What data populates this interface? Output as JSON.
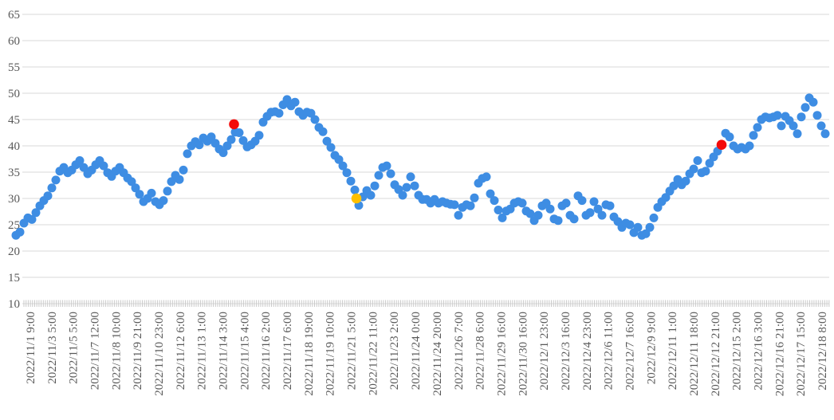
{
  "chart_data": {
    "type": "scatter",
    "title": "",
    "xlabel": "",
    "ylabel": "",
    "legend": "none",
    "grid": "horizontal",
    "y_axis": {
      "min": 10,
      "max": 65,
      "tick_step": 5,
      "ticks": [
        65,
        60,
        55,
        50,
        45,
        40,
        35,
        30,
        25,
        20,
        15,
        10
      ]
    },
    "x_axis": {
      "tick_labels": [
        "2022/11/1 9:00",
        "2022/11/3 5:00",
        "2022/11/5 5:00",
        "2022/11/7 12:00",
        "2022/11/8 10:00",
        "2022/11/9 21:00",
        "2022/11/10 23:00",
        "2022/11/12 6:00",
        "2022/11/13 1:00",
        "2022/11/14 3:00",
        "2022/11/15 4:00",
        "2022/11/16 2:00",
        "2022/11/17 6:00",
        "2022/11/18 19:00",
        "2022/11/19 10:00",
        "2022/11/21 5:00",
        "2022/11/22 11:00",
        "2022/11/23 2:00",
        "2022/11/24 0:00",
        "2022/11/24 20:00",
        "2022/11/26 7:00",
        "2022/11/28 6:00",
        "2022/11/29 16:00",
        "2022/11/30 16:00",
        "2022/12/1 23:00",
        "2022/12/3 16:00",
        "2022/12/4 23:00",
        "2022/12/6 11:00",
        "2022/12/7 16:00",
        "2022/12/9 9:00",
        "2022/12/11 1:00",
        "2022/12/11 18:00",
        "2022/12/12 21:00",
        "2022/12/15 2:00",
        "2022/12/16 3:00",
        "2022/12/16 21:00",
        "2022/12/17 15:00",
        "2022/12/18 8:00"
      ]
    },
    "series": [
      {
        "name": "values",
        "marker": "circle",
        "color": "#3E8DE3",
        "values": [
          23.0,
          23.6,
          25.3,
          26.3,
          26.0,
          27.3,
          28.6,
          29.6,
          30.5,
          32.0,
          33.5,
          35.2,
          35.9,
          34.9,
          35.4,
          36.4,
          37.2,
          35.9,
          34.7,
          35.4,
          36.4,
          37.2,
          36.2,
          34.9,
          34.2,
          35.2,
          35.9,
          34.9,
          33.9,
          33.2,
          32.0,
          30.8,
          29.4,
          30.0,
          31.0,
          29.4,
          28.8,
          29.6,
          31.4,
          33.2,
          34.4,
          33.6,
          35.4,
          38.5,
          40.0,
          40.8,
          40.2,
          41.5,
          40.9,
          41.7,
          40.5,
          39.4,
          38.7,
          40.0,
          41.2,
          42.6,
          42.5,
          41.0,
          39.8,
          40.2,
          40.9,
          42.0,
          44.5,
          45.6,
          46.4,
          46.5,
          46.2,
          47.8,
          48.8,
          47.6,
          48.3,
          46.5,
          45.8,
          46.4,
          46.2,
          45.0,
          43.5,
          42.7,
          40.9,
          39.7,
          38.2,
          37.4,
          36.2,
          34.9,
          33.3,
          31.6,
          28.7,
          30.3,
          31.5,
          30.6,
          32.4,
          34.4,
          35.9,
          36.2,
          34.7,
          32.6,
          31.7,
          30.6,
          32.1,
          34.1,
          32.4,
          30.6,
          29.8,
          29.8,
          29.1,
          29.8,
          29.1,
          29.4,
          29.1,
          28.9,
          28.8,
          26.8,
          28.3,
          28.8,
          28.6,
          30.1,
          32.9,
          33.8,
          34.1,
          30.9,
          29.6,
          27.8,
          26.3,
          27.6,
          28.0,
          29.1,
          29.4,
          29.1,
          27.6,
          27.1,
          25.8,
          26.8,
          28.6,
          29.1,
          28.0,
          26.1,
          25.8,
          28.6,
          29.1,
          26.8,
          26.1,
          30.5,
          29.6,
          26.8,
          27.3,
          29.4,
          28.0,
          26.8,
          28.8,
          28.6,
          26.5,
          25.6,
          24.5,
          25.3,
          25.0,
          23.5,
          24.5,
          23.0,
          23.3,
          24.5,
          26.3,
          28.3,
          29.4,
          30.2,
          31.4,
          32.4,
          33.6,
          32.6,
          33.3,
          34.7,
          35.6,
          37.2,
          34.9,
          35.2,
          36.7,
          37.9,
          39.0,
          40.2,
          42.4,
          41.7,
          40.0,
          39.4,
          39.7,
          39.4,
          40.0,
          42.0,
          43.5,
          45.0,
          45.5,
          45.3,
          45.5,
          45.8,
          43.8,
          45.6,
          44.8,
          43.8,
          42.3,
          45.5,
          47.3,
          49.1,
          48.3,
          45.8,
          43.8,
          42.3
        ]
      }
    ],
    "highlights": [
      {
        "name": "red-marker-1",
        "at_point": 54.7,
        "value": 44.1,
        "color": "#F40A0A"
      },
      {
        "name": "yellow-marker",
        "at_point": 85.4,
        "value": 30.0,
        "color": "#FFC000"
      },
      {
        "name": "red-marker-2",
        "at_point": 177.0,
        "value": 40.2,
        "color": "#F40A0A"
      }
    ],
    "colors": {
      "point_blue": "#3E8DE3",
      "highlight_red": "#F40A0A",
      "highlight_yellow": "#FFC000",
      "gridline": "#D9D9D9",
      "tick_comb": "#C9C9C9",
      "axis_text": "#595959"
    }
  }
}
